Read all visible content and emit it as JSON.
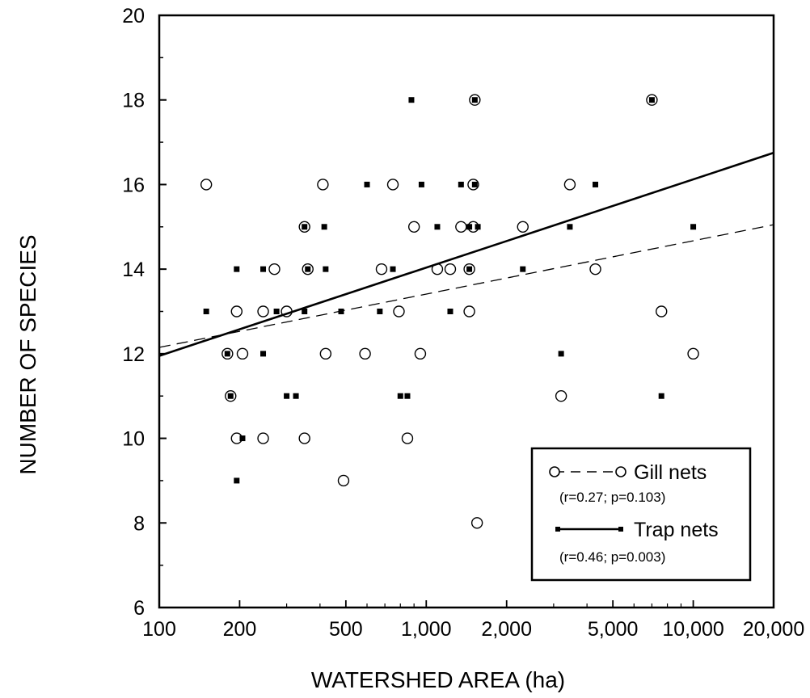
{
  "chart_data": {
    "type": "scatter",
    "title": "",
    "xlabel": "WATERSHED AREA (ha)",
    "ylabel": "NUMBER OF SPECIES",
    "x_scale": "log",
    "xlim": [
      100,
      20000
    ],
    "ylim": [
      6,
      20
    ],
    "x_ticks": [
      100,
      200,
      500,
      1000,
      2000,
      5000,
      10000,
      20000
    ],
    "x_tick_labels": [
      "100",
      "200",
      "500",
      "1,000",
      "2,000",
      "5,000",
      "10,000",
      "20,000"
    ],
    "y_ticks": [
      6,
      8,
      10,
      12,
      14,
      16,
      18,
      20
    ],
    "y_tick_labels": [
      "6",
      "8",
      "10",
      "12",
      "14",
      "16",
      "18",
      "20"
    ],
    "grid": false,
    "legend_position": "bottom-right",
    "series": [
      {
        "name": "Gill nets",
        "stats": "(r=0.27; p=0.103)",
        "marker": "open-circle",
        "line_style": "dashed",
        "fit_line": [
          [
            100,
            12.15
          ],
          [
            20000,
            15.05
          ]
        ],
        "points": [
          [
            150,
            16
          ],
          [
            195,
            13
          ],
          [
            245,
            13
          ],
          [
            300,
            13
          ],
          [
            270,
            14
          ],
          [
            180,
            12
          ],
          [
            205,
            12
          ],
          [
            185,
            11
          ],
          [
            195,
            10
          ],
          [
            245,
            10
          ],
          [
            350,
            15
          ],
          [
            360,
            14
          ],
          [
            410,
            16
          ],
          [
            420,
            12
          ],
          [
            350,
            10
          ],
          [
            490,
            9
          ],
          [
            590,
            12
          ],
          [
            680,
            14
          ],
          [
            750,
            16
          ],
          [
            790,
            13
          ],
          [
            850,
            10
          ],
          [
            900,
            15
          ],
          [
            950,
            12
          ],
          [
            1100,
            14
          ],
          [
            1230,
            14
          ],
          [
            1350,
            15
          ],
          [
            1450,
            14
          ],
          [
            1450,
            13
          ],
          [
            1500,
            16
          ],
          [
            1500,
            15
          ],
          [
            1520,
            18
          ],
          [
            1550,
            8
          ],
          [
            2300,
            15
          ],
          [
            3200,
            11
          ],
          [
            3450,
            16
          ],
          [
            4300,
            14
          ],
          [
            7000,
            18
          ],
          [
            7600,
            13
          ],
          [
            10000,
            12
          ]
        ]
      },
      {
        "name": "Trap nets",
        "stats": "(r=0.46; p=0.003)",
        "marker": "filled-square",
        "line_style": "solid",
        "fit_line": [
          [
            100,
            11.95
          ],
          [
            20000,
            16.75
          ]
        ],
        "points": [
          [
            150,
            13
          ],
          [
            195,
            14
          ],
          [
            195,
            9
          ],
          [
            180,
            12
          ],
          [
            185,
            11
          ],
          [
            205,
            10
          ],
          [
            245,
            14
          ],
          [
            245,
            12
          ],
          [
            275,
            13
          ],
          [
            300,
            11
          ],
          [
            325,
            11
          ],
          [
            350,
            13
          ],
          [
            350,
            15
          ],
          [
            360,
            14
          ],
          [
            415,
            15
          ],
          [
            420,
            14
          ],
          [
            480,
            13
          ],
          [
            600,
            16
          ],
          [
            670,
            13
          ],
          [
            750,
            14
          ],
          [
            800,
            11
          ],
          [
            850,
            11
          ],
          [
            880,
            18
          ],
          [
            960,
            16
          ],
          [
            1100,
            15
          ],
          [
            1230,
            13
          ],
          [
            1350,
            16
          ],
          [
            1450,
            15
          ],
          [
            1450,
            14
          ],
          [
            1520,
            16
          ],
          [
            1520,
            18
          ],
          [
            1560,
            15
          ],
          [
            2300,
            14
          ],
          [
            3200,
            12
          ],
          [
            3450,
            15
          ],
          [
            4300,
            16
          ],
          [
            7000,
            18
          ],
          [
            7600,
            11
          ],
          [
            10000,
            15
          ]
        ]
      }
    ]
  }
}
